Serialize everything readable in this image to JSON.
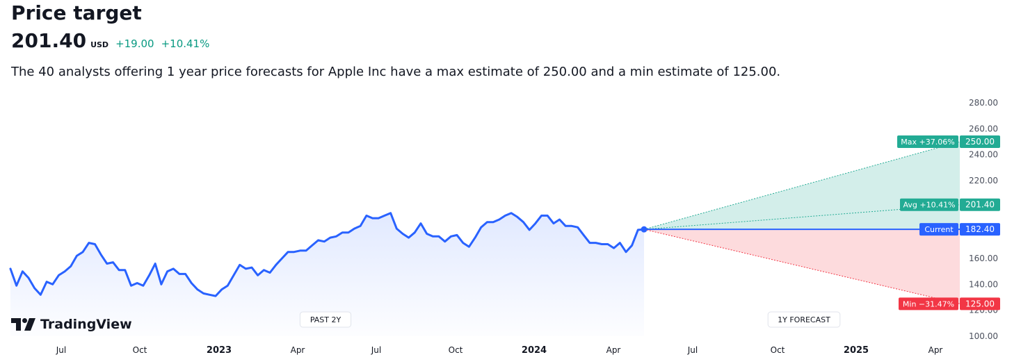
{
  "header": {
    "title": "Price target",
    "price": "201.40",
    "currency": "USD",
    "change": "+19.00",
    "change_pct": "+10.41%",
    "description": "The 40 analysts offering 1 year price forecasts for Apple Inc have a max estimate of 250.00 and a min estimate of 125.00."
  },
  "brand": {
    "name": "TradingView"
  },
  "colors": {
    "line": "#2962ff",
    "up": "#22ab94",
    "down": "#f23645",
    "avg": "#22ab94",
    "current": "#2962ff"
  },
  "chart_data": {
    "type": "line",
    "title": "",
    "ylim": [
      100,
      280
    ],
    "y_ticks": [
      "100.00",
      "120.00",
      "140.00",
      "160.00",
      "180.00",
      "200.00",
      "220.00",
      "240.00",
      "260.00",
      "280.00"
    ],
    "x_ticks": [
      "Jul",
      "Oct",
      "2023",
      "Apr",
      "Jul",
      "Oct",
      "2024",
      "Apr",
      "Jul",
      "Oct",
      "2025",
      "Apr"
    ],
    "bold_x_ticks": [
      "2023",
      "2024",
      "2025"
    ],
    "past_label": "PAST 2Y",
    "forecast_label": "1Y FORECAST",
    "series": [
      {
        "values": [
          152,
          139,
          150,
          145,
          137,
          132,
          142,
          140,
          147,
          150,
          154,
          162,
          165,
          172,
          171,
          163,
          156,
          157,
          151,
          151,
          139,
          141,
          139,
          147,
          156,
          140,
          150,
          152,
          148,
          148,
          141,
          136,
          133,
          132,
          131,
          136,
          139,
          147,
          155,
          152,
          153,
          147,
          151,
          149,
          155,
          160,
          165,
          165,
          166,
          166,
          170,
          174,
          173,
          176,
          177,
          180,
          180,
          183,
          185,
          193,
          191,
          191,
          193,
          195,
          183,
          179,
          176,
          180,
          187,
          179,
          177,
          177,
          173,
          177,
          178,
          172,
          169,
          176,
          184,
          188,
          188,
          190,
          193,
          195,
          192,
          188,
          182,
          187,
          193,
          193,
          187,
          190,
          185,
          185,
          184,
          178,
          172,
          172,
          171,
          171,
          168,
          172,
          165,
          170,
          182,
          182.4
        ]
      }
    ],
    "forecast": {
      "current": {
        "label": "Current",
        "value": 182.4,
        "price_label": "182.40"
      },
      "max": {
        "label": "Max +37.06%",
        "value": 250.0,
        "price_label": "250.00"
      },
      "avg": {
        "label": "Avg +10.41%",
        "value": 201.4,
        "price_label": "201.40"
      },
      "min": {
        "label": "Min −31.47%",
        "value": 125.0,
        "price_label": "125.00"
      }
    }
  }
}
